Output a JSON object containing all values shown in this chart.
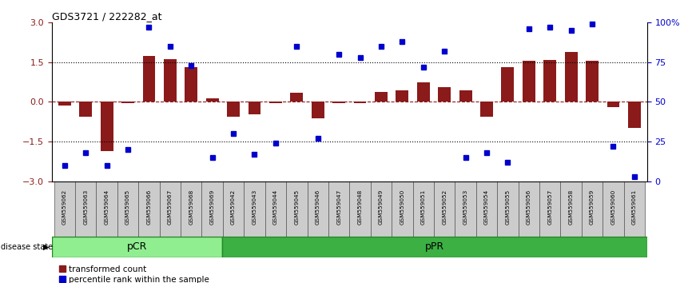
{
  "title": "GDS3721 / 222282_at",
  "samples": [
    "GSM559062",
    "GSM559063",
    "GSM559064",
    "GSM559065",
    "GSM559066",
    "GSM559067",
    "GSM559068",
    "GSM559069",
    "GSM559042",
    "GSM559043",
    "GSM559044",
    "GSM559045",
    "GSM559046",
    "GSM559047",
    "GSM559048",
    "GSM559049",
    "GSM559050",
    "GSM559051",
    "GSM559052",
    "GSM559053",
    "GSM559054",
    "GSM559055",
    "GSM559056",
    "GSM559057",
    "GSM559058",
    "GSM559059",
    "GSM559060",
    "GSM559061"
  ],
  "bar_values": [
    -0.15,
    -0.55,
    -1.85,
    -0.05,
    1.75,
    1.62,
    1.3,
    0.12,
    -0.55,
    -0.48,
    -0.05,
    0.35,
    -0.62,
    -0.05,
    -0.05,
    0.38,
    0.45,
    0.75,
    0.55,
    0.45,
    -0.55,
    1.3,
    1.55,
    1.6,
    1.9,
    1.55,
    -0.2,
    -1.0
  ],
  "percentile_values": [
    10,
    18,
    10,
    20,
    97,
    85,
    73,
    15,
    30,
    17,
    24,
    85,
    27,
    80,
    78,
    85,
    88,
    72,
    82,
    15,
    18,
    12,
    96,
    97,
    95,
    99,
    22,
    3
  ],
  "pcr_count": 8,
  "ppr_count": 20,
  "bar_color": "#8B1A1A",
  "percentile_color": "#0000CD",
  "ylim": [
    -3,
    3
  ],
  "yticks_left": [
    -3,
    -1.5,
    0,
    1.5,
    3
  ],
  "yticks_right": [
    0,
    25,
    50,
    75,
    100
  ],
  "pcr_color": "#90EE90",
  "ppr_color": "#3CB043",
  "label_bar": "transformed count",
  "label_percentile": "percentile rank within the sample",
  "disease_state_label": "disease state"
}
